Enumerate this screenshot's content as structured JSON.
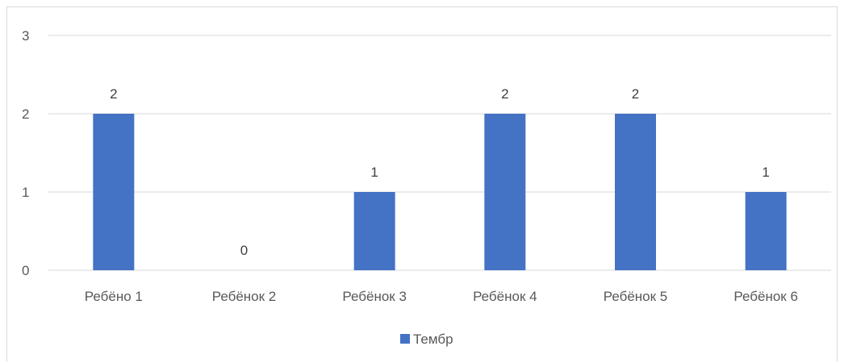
{
  "chart_data": {
    "type": "bar",
    "categories": [
      "Ребёно 1",
      "Ребёнок 2",
      "Ребёнок 3",
      "Ребёнок 4",
      "Ребёнок 5",
      "Ребёнок 6"
    ],
    "series": [
      {
        "name": "Тембр",
        "values": [
          2,
          0,
          1,
          2,
          2,
          1
        ]
      }
    ],
    "ylim": [
      0,
      3
    ],
    "yticks": [
      "0",
      "1",
      "2",
      "3"
    ],
    "grid": true,
    "legend_position": "bottom",
    "data_labels": true,
    "colors": {
      "bar": "#4472C4",
      "grid": "#d9d9d9",
      "axis": "#d9d9d9"
    }
  }
}
